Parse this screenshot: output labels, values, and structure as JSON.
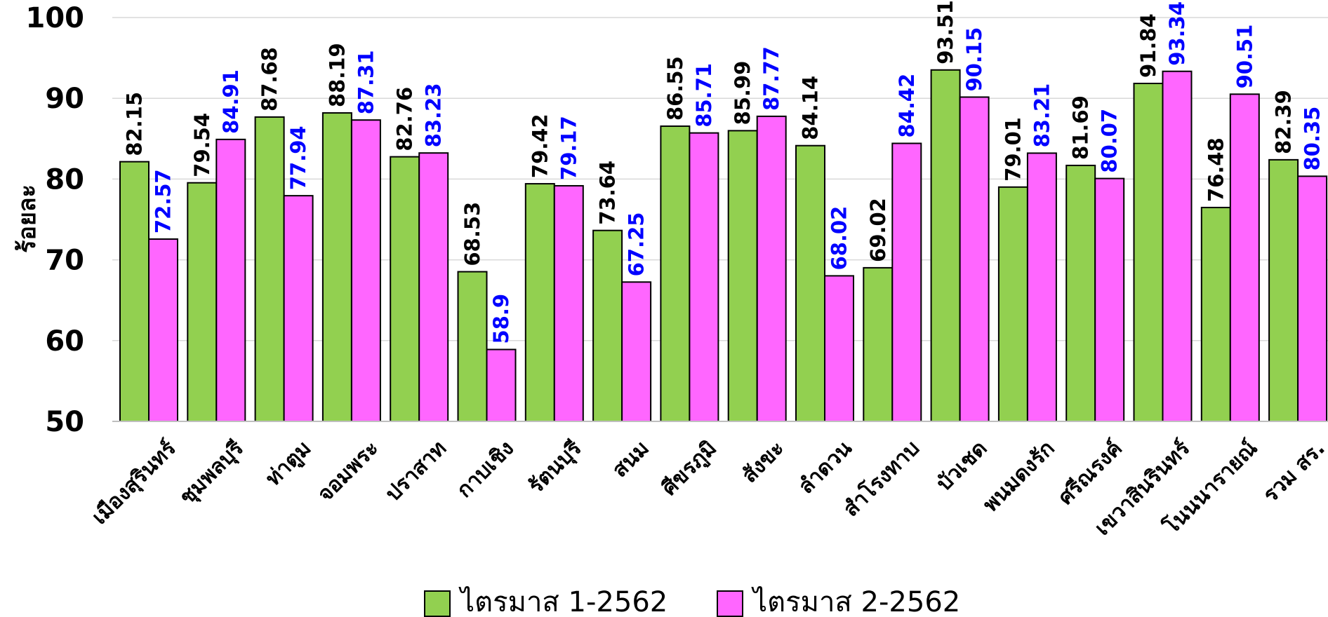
{
  "chart_data": {
    "type": "bar",
    "title": "",
    "xlabel": "",
    "ylabel": "ร้อยละ",
    "ylim": [
      50,
      100
    ],
    "yticks": [
      50,
      60,
      70,
      80,
      90,
      100
    ],
    "grid": true,
    "legend_position": "bottom",
    "categories": [
      "เมืองสุรินทร์",
      "ชุมพลบุรี",
      "ท่าตูม",
      "จอมพระ",
      "ปราสาท",
      "กาบเชิง",
      "รัตนบุรี",
      "สนม",
      "ศีขรภูมิ",
      "สังขะ",
      "ลำดวน",
      "สำโรงทาบ",
      "บัวเชด",
      "พนมดงรัก",
      "ศรีณรงค์",
      "เขวาสินรินทร์",
      "โนนนารายณ์",
      "รวม สร."
    ],
    "series": [
      {
        "name": "ไตรมาส 1-2562",
        "color": "#92D050",
        "label_color": "#000000",
        "values": [
          82.15,
          79.54,
          87.68,
          88.19,
          82.76,
          68.53,
          79.42,
          73.64,
          86.55,
          85.99,
          84.14,
          69.02,
          93.51,
          79.01,
          81.69,
          91.84,
          76.48,
          82.39
        ],
        "labels": [
          "82.15",
          "79.54",
          "87.68",
          "88.19",
          "82.76",
          "68.53",
          "79.42",
          "73.64",
          "86.55",
          "85.99",
          "84.14",
          "69.02",
          "93.51",
          "79.01",
          "81.69",
          "91.84",
          "76.48",
          "82.39"
        ]
      },
      {
        "name": "ไตรมาส 2-2562",
        "color": "#FF66FF",
        "label_color": "#0000FF",
        "values": [
          72.57,
          84.91,
          77.94,
          87.31,
          83.23,
          58.9,
          79.17,
          67.25,
          85.71,
          87.77,
          68.02,
          84.42,
          90.15,
          83.21,
          80.07,
          93.34,
          90.51,
          80.35
        ],
        "labels": [
          "72.57",
          "84.91",
          "77.94",
          "87.31",
          "83.23",
          "58.9",
          "79.17",
          "67.25",
          "85.71",
          "87.77",
          "68.02",
          "84.42",
          "90.15",
          "83.21",
          "80.07",
          "93.34",
          "90.51",
          "80.35"
        ]
      }
    ]
  }
}
